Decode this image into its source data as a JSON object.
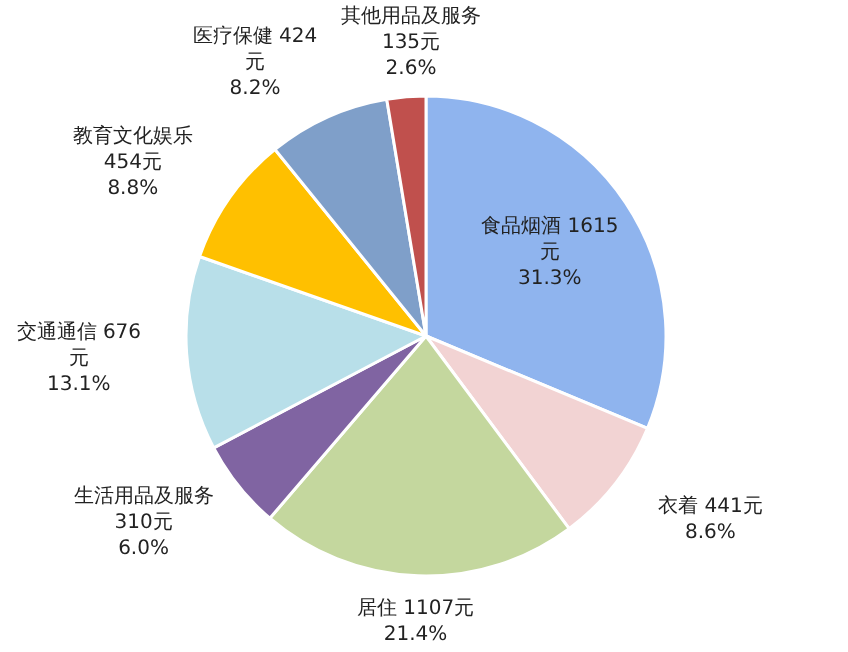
{
  "chart_data": {
    "type": "pie",
    "categories": [
      "食品烟酒",
      "衣着",
      "居住",
      "生活用品及服务",
      "交通通信",
      "教育文化娱乐",
      "医疗保健",
      "其他用品及服务"
    ],
    "values": [
      1615,
      441,
      1107,
      310,
      676,
      454,
      424,
      135
    ],
    "value_labels": [
      "1615元",
      "441元",
      "1107元",
      "310元",
      "676元",
      "454元",
      "424元",
      "135元"
    ],
    "colors": [
      "#8fb4ee",
      "#f2d3d3",
      "#c4d79e",
      "#8064a2",
      "#b8dfe9",
      "#ffc000",
      "#7f9fc9",
      "#c0504d"
    ],
    "annotations": [
      {
        "text": "31.3%",
        "x": "食品烟酒"
      },
      {
        "text": "8.6%",
        "x": "衣着"
      },
      {
        "text": "21.4%",
        "x": "居住"
      },
      {
        "text": "6.0%",
        "x": "生活用品及服务"
      },
      {
        "text": "13.1%",
        "x": "交通通信"
      },
      {
        "text": "8.8%",
        "x": "教育文化娱乐"
      },
      {
        "text": "8.2%",
        "x": "医疗保健"
      },
      {
        "text": "2.6%",
        "x": "其他用品及服务"
      }
    ]
  }
}
